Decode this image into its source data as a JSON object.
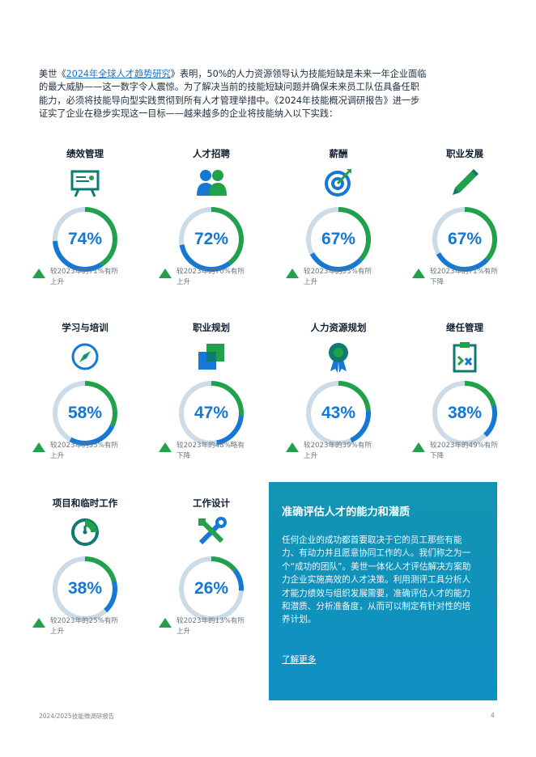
{
  "intro": {
    "prefix": "美世《",
    "link": "2024年全球人才趋势研究",
    "rest": "》表明，50%的人力资源领导认为技能短缺是未来一年企业面临的最大威胁——这一数字令人震惊。为了解决当前的技能短缺问题并确保未来员工队伍具备任职能力，必须将技能导向型实践贯彻到所有人才管理举措中。《2024年技能概况调研报告》进一步证实了企业在稳步实现这一目标——越来越多的企业将技能纳入以下实践："
  },
  "cards": [
    {
      "title": "绩效管理",
      "pct": "74%",
      "value": 74,
      "icon": "presentation-board-icon",
      "note": "较2023年的71%有所上升"
    },
    {
      "title": "人才招聘",
      "pct": "72%",
      "value": 72,
      "icon": "people-icon",
      "note": "较2023年的70%有所上升"
    },
    {
      "title": "薪酬",
      "pct": "67%",
      "value": 67,
      "icon": "target-icon",
      "note": "较2023年的53%有所上升"
    },
    {
      "title": "职业发展",
      "pct": "67%",
      "value": 67,
      "icon": "pencil-icon",
      "note": "较2023年的71%有所下降"
    },
    {
      "title": "学习与培训",
      "pct": "58%",
      "value": 58,
      "icon": "compass-icon",
      "note": "较2023年的53%有所上升"
    },
    {
      "title": "职业规划",
      "pct": "47%",
      "value": 47,
      "icon": "squares-icon",
      "note": "较2023年的48%略有下降"
    },
    {
      "title": "人力资源规划",
      "pct": "43%",
      "value": 43,
      "icon": "award-icon",
      "note": "较2023年的39%有所上升"
    },
    {
      "title": "继任管理",
      "pct": "38%",
      "value": 38,
      "icon": "clipboard-icon",
      "note": "较2023年的49%有所下降"
    },
    {
      "title": "项目和临时工作",
      "pct": "38%",
      "value": 38,
      "icon": "timer-icon",
      "note": "较2023年的25%有所上升"
    },
    {
      "title": "工作设计",
      "pct": "26%",
      "value": 26,
      "icon": "tools-icon",
      "note": "较2023年的13%有所上升"
    }
  ],
  "panel": {
    "heading": "准确评估人才的能力和潜质",
    "body": "任何企业的成功都首要取决于它的员工那些有能力、有动力并且愿意协同工作的人。我们称之为一个“成功的团队”。美世一体化人才评估解决方案助力企业实施高效的人才决策。利用测评工具分析人才能力绩效与组织发展需要，准确评估人才的能力和潜质、分析准备度，从而可以制定有针对性的培养计划。",
    "link": "了解更多"
  },
  "footer": {
    "left": "2024/2025技能微调研报告",
    "page": "4"
  },
  "colors": {
    "ring_track": "#cbdbe8",
    "ring_green": "#21a14a",
    "ring_blue": "#1478d4",
    "pct_text": "#1478d4",
    "triangle": "#21a14a",
    "panel_bg": "#1294b2"
  }
}
